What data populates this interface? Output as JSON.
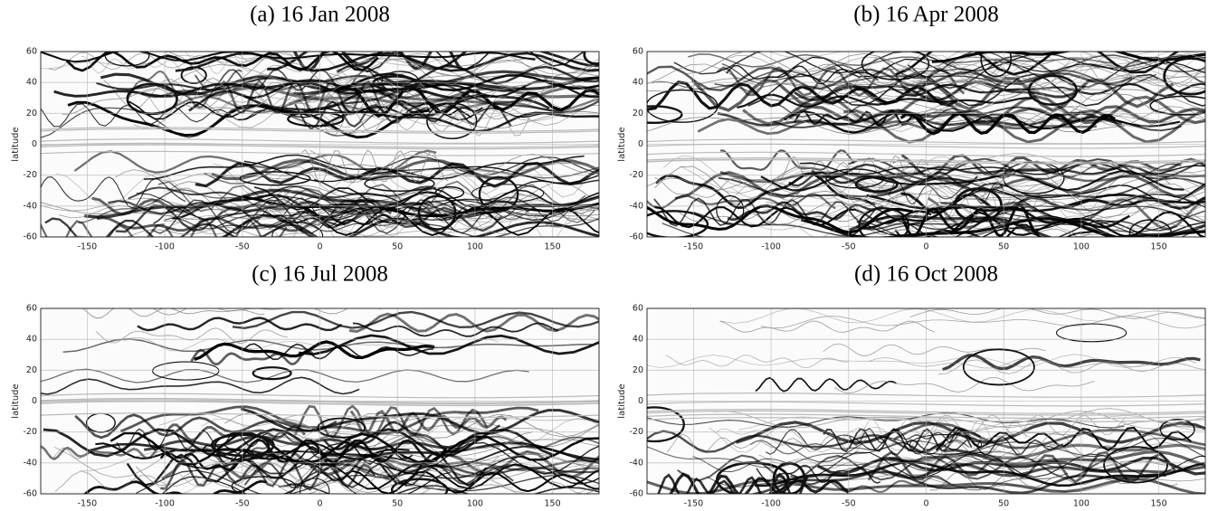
{
  "chart_data": [
    {
      "type": "image",
      "title": "(a) 16 Jan 2008",
      "ylabel": "latitude",
      "xlim": [
        -180,
        180
      ],
      "ylim": [
        -60,
        60
      ],
      "xticks": [
        -150,
        -100,
        -50,
        0,
        50,
        100,
        150
      ],
      "yticks": [
        -60,
        -40,
        -20,
        0,
        20,
        40,
        60
      ],
      "grid": true
    },
    {
      "type": "image",
      "title": "(b) 16 Apr 2008",
      "ylabel": "latitude",
      "xlim": [
        -180,
        180
      ],
      "ylim": [
        -60,
        60
      ],
      "xticks": [
        -150,
        -100,
        -50,
        0,
        50,
        100,
        150
      ],
      "yticks": [
        -60,
        -40,
        -20,
        0,
        20,
        40,
        60
      ],
      "grid": true
    },
    {
      "type": "image",
      "title": "(c) 16 Jul 2008",
      "ylabel": "latitude",
      "xlim": [
        -180,
        180
      ],
      "ylim": [
        -60,
        60
      ],
      "xticks": [
        -150,
        -100,
        -50,
        0,
        50,
        100,
        150
      ],
      "yticks": [
        -60,
        -40,
        -20,
        0,
        20,
        40,
        60
      ],
      "grid": true
    },
    {
      "type": "image",
      "title": "(d) 16 Oct 2008",
      "ylabel": "latitude",
      "xlim": [
        -180,
        180
      ],
      "ylim": [
        -60,
        60
      ],
      "xticks": [
        -150,
        -100,
        -50,
        0,
        50,
        100,
        150
      ],
      "yticks": [
        -60,
        -40,
        -20,
        0,
        20,
        40,
        60
      ],
      "grid": true
    }
  ]
}
